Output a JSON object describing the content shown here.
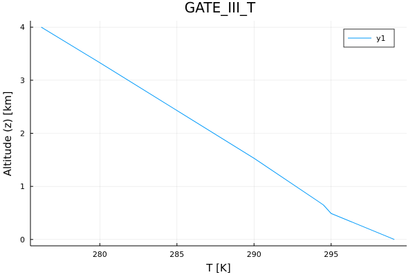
{
  "chart_data": {
    "type": "line",
    "title": "GATE_III_T",
    "xlabel": "T [K]",
    "ylabel": "Altitude (z) [km]",
    "xlim": [
      275.5,
      299.9
    ],
    "ylim": [
      -0.12,
      4.12
    ],
    "xticks": [
      280,
      285,
      290,
      295
    ],
    "yticks": [
      0,
      1,
      2,
      3,
      4
    ],
    "grid": true,
    "legend": {
      "position": "top-right",
      "entries": [
        "y1"
      ]
    },
    "series": [
      {
        "name": "y1",
        "color": "#009AFA",
        "x": [
          276.2,
          280.0,
          285.0,
          290.0,
          294.2,
          294.5,
          295.0,
          299.1
        ],
        "y": [
          4.0,
          3.33,
          2.43,
          1.53,
          0.71,
          0.65,
          0.49,
          0.0
        ]
      }
    ]
  }
}
